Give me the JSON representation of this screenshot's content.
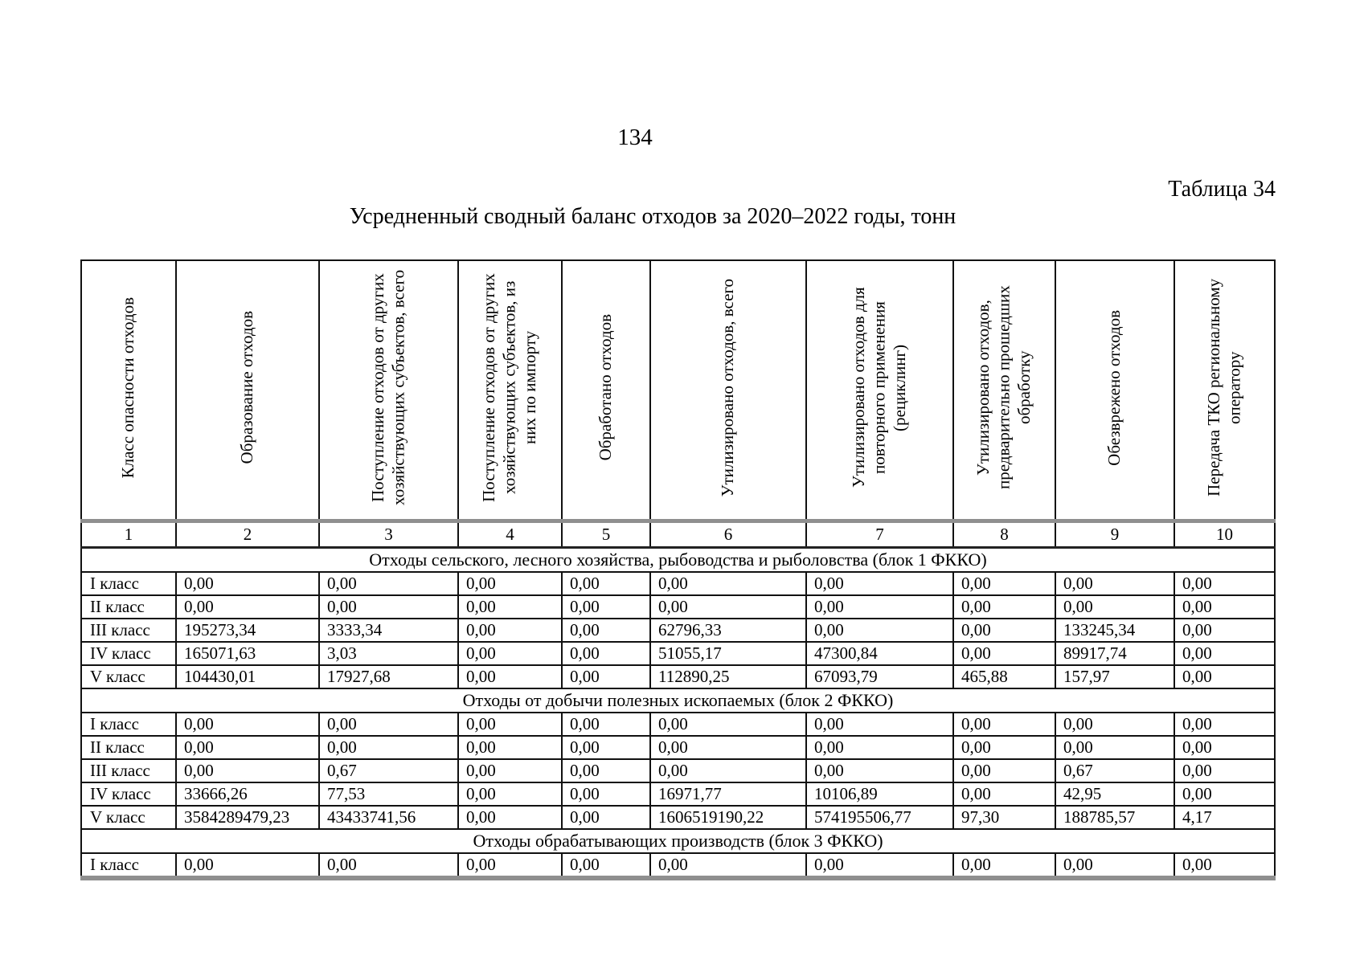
{
  "page": {
    "page_number": "134",
    "table_label": "Таблица 34",
    "title": "Усредненный сводный баланс отходов за 2020–2022 годы, тонн"
  },
  "table": {
    "columns": [
      {
        "num": "1",
        "header": "Класс опасности отходов"
      },
      {
        "num": "2",
        "header": "Образование отходов"
      },
      {
        "num": "3",
        "header": "Поступление отходов от других хозяйствующих субъектов, всего"
      },
      {
        "num": "4",
        "header": "Поступление отходов от других хозяйствующих субъектов, из них по импорту"
      },
      {
        "num": "5",
        "header": "Обработано отходов"
      },
      {
        "num": "6",
        "header": "Утилизировано отходов, всего"
      },
      {
        "num": "7",
        "header": "Утилизировано отходов для повторного применения (рециклинг)"
      },
      {
        "num": "8",
        "header": "Утилизировано отходов, предварительно прошедших обработку"
      },
      {
        "num": "9",
        "header": "Обезврежено отходов"
      },
      {
        "num": "10",
        "header": "Передача ТКО региональному оператору"
      }
    ],
    "sections": [
      {
        "title": "Отходы сельского, лесного хозяйства, рыбоводства и рыболовства (блок 1 ФККО)",
        "rows": [
          {
            "class": "I класс",
            "values": [
              "0,00",
              "0,00",
              "0,00",
              "0,00",
              "0,00",
              "0,00",
              "0,00",
              "0,00",
              "0,00"
            ]
          },
          {
            "class": "II класс",
            "values": [
              "0,00",
              "0,00",
              "0,00",
              "0,00",
              "0,00",
              "0,00",
              "0,00",
              "0,00",
              "0,00"
            ]
          },
          {
            "class": "III класс",
            "values": [
              "195273,34",
              "3333,34",
              "0,00",
              "0,00",
              "62796,33",
              "0,00",
              "0,00",
              "133245,34",
              "0,00"
            ]
          },
          {
            "class": "IV класс",
            "values": [
              "165071,63",
              "3,03",
              "0,00",
              "0,00",
              "51055,17",
              "47300,84",
              "0,00",
              "89917,74",
              "0,00"
            ]
          },
          {
            "class": "V класс",
            "values": [
              "104430,01",
              "17927,68",
              "0,00",
              "0,00",
              "112890,25",
              "67093,79",
              "465,88",
              "157,97",
              "0,00"
            ]
          }
        ]
      },
      {
        "title": "Отходы от добычи полезных ископаемых (блок 2 ФККО)",
        "rows": [
          {
            "class": "I класс",
            "values": [
              "0,00",
              "0,00",
              "0,00",
              "0,00",
              "0,00",
              "0,00",
              "0,00",
              "0,00",
              "0,00"
            ]
          },
          {
            "class": "II класс",
            "values": [
              "0,00",
              "0,00",
              "0,00",
              "0,00",
              "0,00",
              "0,00",
              "0,00",
              "0,00",
              "0,00"
            ]
          },
          {
            "class": "III класс",
            "values": [
              "0,00",
              "0,67",
              "0,00",
              "0,00",
              "0,00",
              "0,00",
              "0,00",
              "0,67",
              "0,00"
            ]
          },
          {
            "class": "IV класс",
            "values": [
              "33666,26",
              "77,53",
              "0,00",
              "0,00",
              "16971,77",
              "10106,89",
              "0,00",
              "42,95",
              "0,00"
            ]
          },
          {
            "class": "V класс",
            "values": [
              "3584289479,23",
              "43433741,56",
              "0,00",
              "0,00",
              "1606519190,22",
              "574195506,77",
              "97,30",
              "188785,57",
              "4,17"
            ]
          }
        ]
      },
      {
        "title": "Отходы обрабатывающих производств (блок 3 ФККО)",
        "rows": [
          {
            "class": "I класс",
            "values": [
              "0,00",
              "0,00",
              "0,00",
              "0,00",
              "0,00",
              "0,00",
              "0,00",
              "0,00",
              "0,00"
            ]
          }
        ]
      }
    ]
  }
}
